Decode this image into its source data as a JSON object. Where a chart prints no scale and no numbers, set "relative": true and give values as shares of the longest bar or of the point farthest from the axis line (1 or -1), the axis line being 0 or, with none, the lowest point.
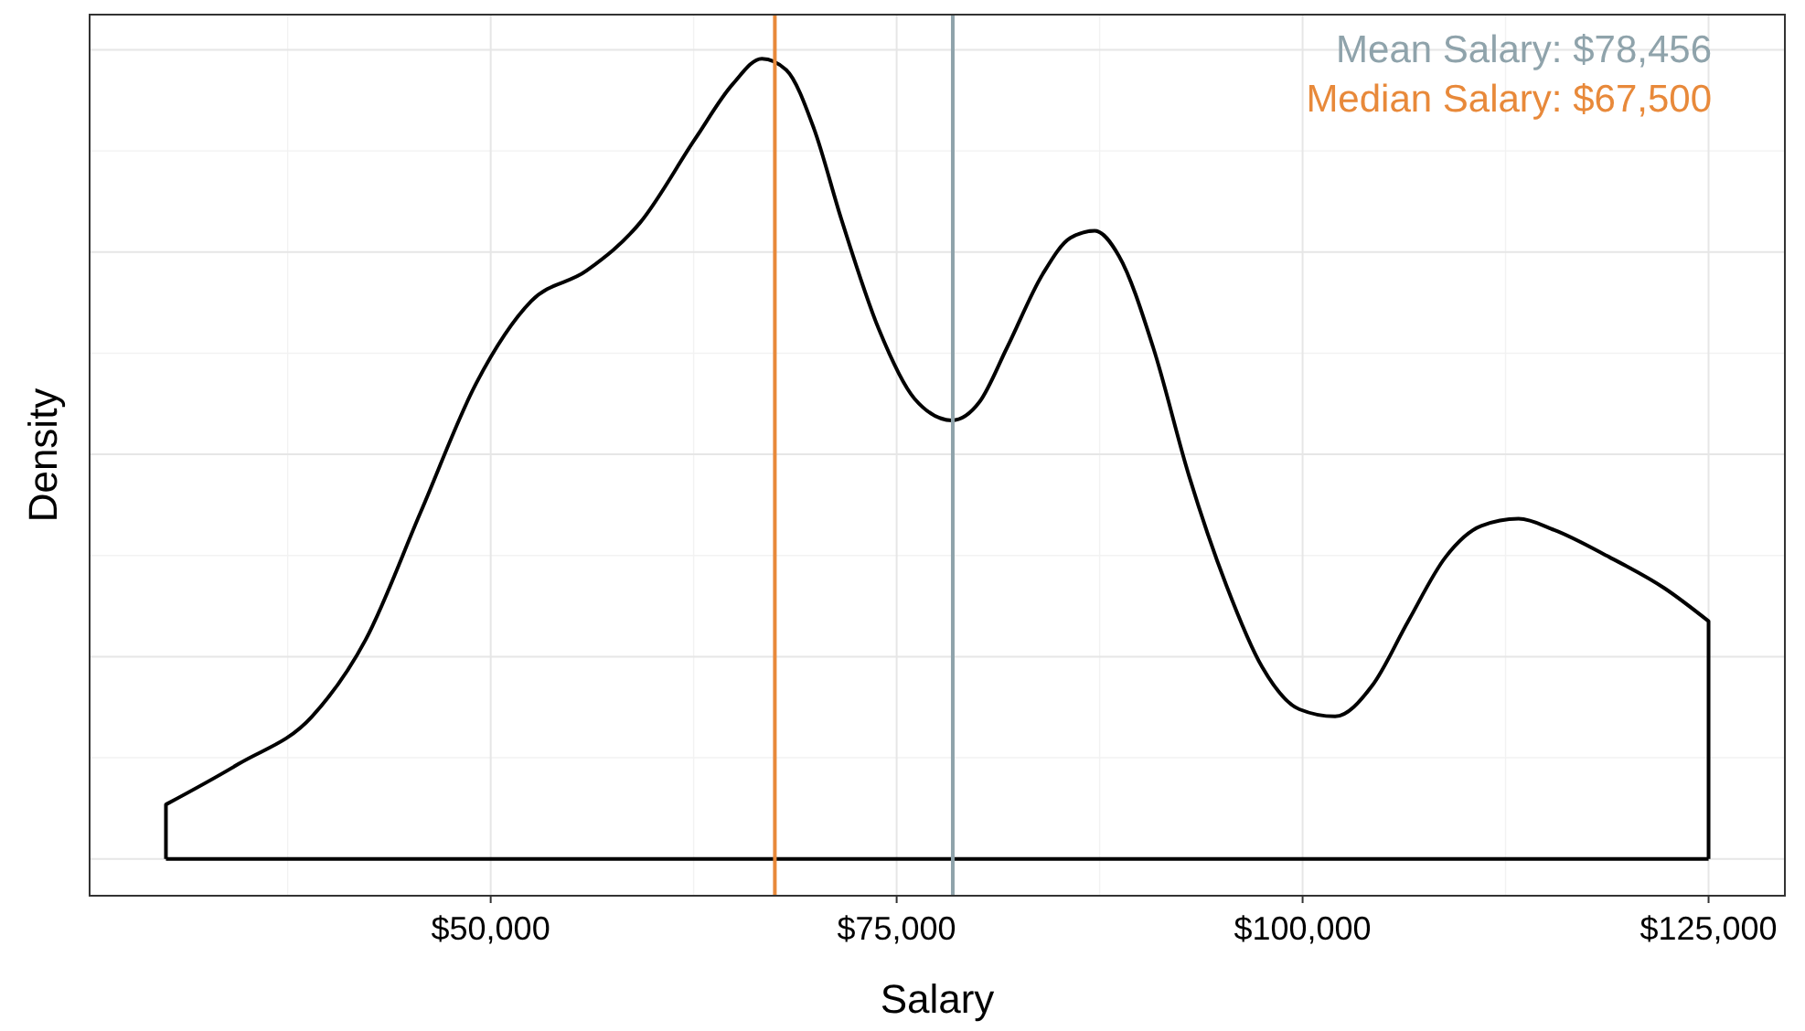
{
  "chart_data": {
    "type": "line",
    "relative": true,
    "xlabel": "Salary",
    "ylabel": "Density",
    "grid": true,
    "tick_labels": "x",
    "xlim": [
      25300,
      129700
    ],
    "xticks": [
      {
        "value": 50000,
        "label": "$50,000"
      },
      {
        "value": 75000,
        "label": "$75,000"
      },
      {
        "value": 100000,
        "label": "$100,000"
      },
      {
        "value": 125000,
        "label": "$125,000"
      }
    ],
    "series": [
      {
        "color": "#000000",
        "x": [
          30000,
          30000,
          34500,
          39000,
          42300,
          45700,
          49100,
          52500,
          55900,
          59200,
          62600,
          64900,
          66700,
          68200,
          69900,
          71600,
          73900,
          76100,
          78400,
          80100,
          81800,
          84000,
          85700,
          87200,
          88700,
          90800,
          93000,
          95300,
          97500,
          99800,
          102000,
          104300,
          106500,
          108800,
          111000,
          113300,
          115500,
          118900,
          122300,
          125000,
          125000
        ],
        "values": [
          0,
          0.068,
          0.119,
          0.178,
          0.274,
          0.434,
          0.594,
          0.697,
          0.735,
          0.795,
          0.9,
          0.968,
          1,
          0.986,
          0.913,
          0.799,
          0.662,
          0.575,
          0.548,
          0.571,
          0.639,
          0.731,
          0.776,
          0.785,
          0.753,
          0.639,
          0.479,
          0.342,
          0.24,
          0.187,
          0.178,
          0.217,
          0.297,
          0.377,
          0.416,
          0.425,
          0.411,
          0.377,
          0.338,
          0.297,
          0
        ]
      }
    ],
    "ref_lines": [
      {
        "axis": "x",
        "value": 78456,
        "label": "Mean Salary: $78,456",
        "color": "#8fa3ab"
      },
      {
        "axis": "x",
        "value": 67500,
        "label": "Median Salary: $67,500",
        "color": "#e8893a"
      }
    ]
  }
}
